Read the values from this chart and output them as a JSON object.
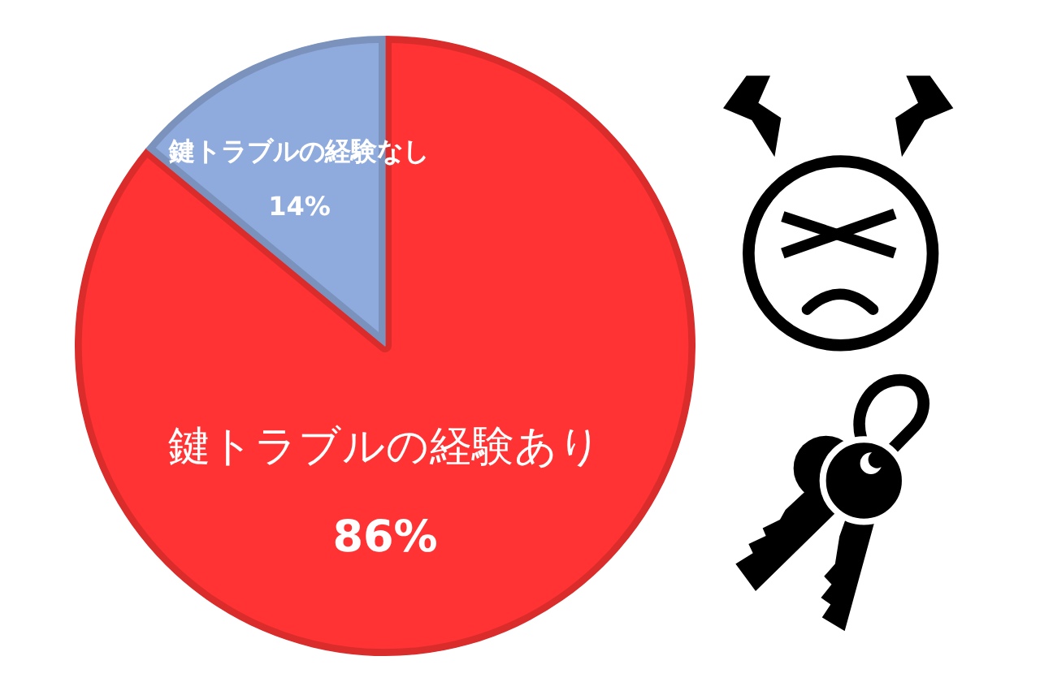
{
  "chart_data": {
    "type": "pie",
    "categories": [
      "鍵トラブルの経験あり",
      "鍵トラブルの経験なし"
    ],
    "values": [
      86,
      14
    ],
    "colors": [
      "#ff3333",
      "#8faadc"
    ],
    "value_labels": [
      "86%",
      "14%"
    ],
    "legend": false
  }
}
